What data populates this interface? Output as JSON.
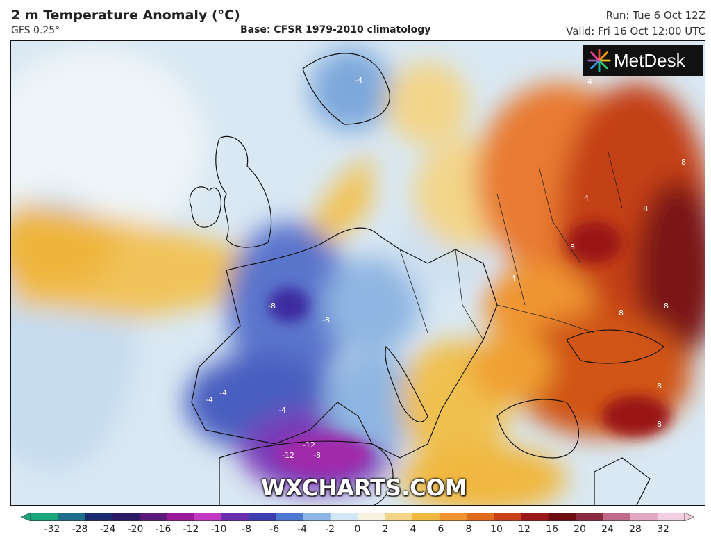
{
  "header": {
    "title": "2 m Temperature Anomaly (°C)",
    "model": "GFS 0.25°",
    "base": "Base: CFSR 1979-2010 climatology",
    "run": "Run: Tue 6 Oct 12Z",
    "valid": "Valid: Fri 16 Oct 12:00 UTC"
  },
  "branding": {
    "logo_text": "MetDesk",
    "watermark": "WXCHARTS.COM"
  },
  "contour_labels": [
    {
      "text": "-4"
    },
    {
      "text": "-8"
    },
    {
      "text": "-8"
    },
    {
      "text": "-4"
    },
    {
      "text": "-4"
    },
    {
      "text": "-12"
    },
    {
      "text": "-12"
    },
    {
      "text": "-8"
    },
    {
      "text": "-8"
    },
    {
      "text": "-4"
    },
    {
      "text": "4"
    },
    {
      "text": "4"
    },
    {
      "text": "8"
    },
    {
      "text": "8"
    },
    {
      "text": "8"
    },
    {
      "text": "8"
    },
    {
      "text": "8"
    },
    {
      "text": "8"
    },
    {
      "text": "4"
    },
    {
      "text": "8"
    }
  ],
  "colorbar": {
    "ticks": [
      "-32",
      "-28",
      "-24",
      "-20",
      "-16",
      "-12",
      "-10",
      "-8",
      "-6",
      "-4",
      "-2",
      "0",
      "2",
      "4",
      "6",
      "8",
      "10",
      "12",
      "16",
      "20",
      "24",
      "28",
      "32"
    ],
    "colors": [
      "#1aa57a",
      "#1f6f8a",
      "#1b2a6e",
      "#2a1a66",
      "#5a1a7a",
      "#9a1a9a",
      "#c23ac2",
      "#6a2fae",
      "#3d3db0",
      "#4e78d0",
      "#8fb6e2",
      "#d3e6f4",
      "#f6f2e0",
      "#f3d58a",
      "#f0b840",
      "#ef9430",
      "#e06a20",
      "#c84018",
      "#9a1818",
      "#6a0c10",
      "#8a2a40",
      "#c06a8a",
      "#e0a8c0",
      "#f0d0e0"
    ]
  }
}
